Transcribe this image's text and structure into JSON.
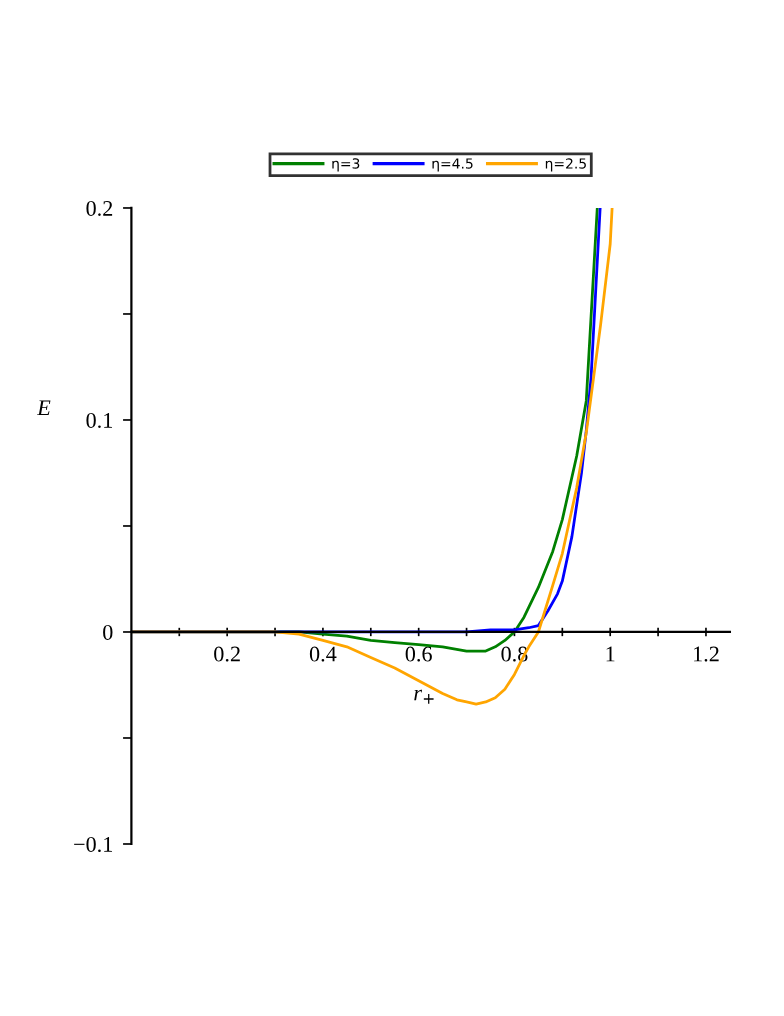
{
  "chart_data": {
    "type": "line",
    "xlabel": "r$_{+}$",
    "ylabel": "E",
    "xlim": [
      0,
      1.25
    ],
    "ylim": [
      -0.1,
      0.2
    ],
    "xticks": [
      {
        "value": 0.1,
        "label": null
      },
      0.2,
      {
        "value": 0.3,
        "label": null
      },
      0.4,
      {
        "value": 0.5,
        "label": null
      },
      0.6,
      {
        "value": 0.7,
        "label": null
      },
      0.8,
      {
        "value": 0.9,
        "label": null
      },
      1,
      {
        "value": 1.1,
        "label": null
      },
      1.2
    ],
    "yticks": [
      {
        "value": -0.1,
        "label": "−0.1"
      },
      {
        "value": -0.05,
        "label": null
      },
      0,
      {
        "value": 0.05,
        "label": null
      },
      0.1,
      {
        "value": 0.15,
        "label": null
      },
      0.2
    ],
    "legend": "top",
    "grid": false,
    "marker": "none",
    "line_style": "solid",
    "series": [
      {
        "name": "η=3",
        "color": "#008000",
        "x": [
          0,
          0.35,
          0.4,
          0.45,
          0.5,
          0.55,
          0.6,
          0.65,
          0.7,
          0.72,
          0.74,
          0.76,
          0.78,
          0.8,
          0.82,
          0.85,
          0.88,
          0.9,
          0.93,
          0.95,
          0.973
        ],
        "values": [
          0,
          0,
          -0.001,
          -0.002,
          -0.004,
          -0.005,
          -0.006,
          -0.007,
          -0.009,
          -0.009,
          -0.009,
          -0.007,
          -0.004,
          0,
          0.007,
          0.021,
          0.038,
          0.053,
          0.083,
          0.109,
          0.2
        ]
      },
      {
        "name": "η=4.5",
        "color": "#0000ff",
        "x": [
          0,
          0.7,
          0.75,
          0.8,
          0.83,
          0.85,
          0.87,
          0.89,
          0.9,
          0.92,
          0.94,
          0.95,
          0.96,
          0.979
        ],
        "values": [
          0,
          0,
          0.001,
          0.001,
          0.002,
          0.003,
          0.01,
          0.018,
          0.024,
          0.045,
          0.075,
          0.095,
          0.12,
          0.2
        ]
      },
      {
        "name": "η=2.5",
        "color": "#ffa500",
        "x": [
          0,
          0.3,
          0.35,
          0.4,
          0.45,
          0.5,
          0.55,
          0.6,
          0.65,
          0.68,
          0.7,
          0.72,
          0.74,
          0.76,
          0.78,
          0.8,
          0.82,
          0.83,
          0.85,
          0.88,
          0.9,
          0.93,
          0.95,
          0.98,
          1.0,
          1.004
        ],
        "values": [
          0,
          0,
          -0.001,
          -0.004,
          -0.007,
          -0.012,
          -0.017,
          -0.023,
          -0.029,
          -0.032,
          -0.033,
          -0.034,
          -0.033,
          -0.031,
          -0.027,
          -0.02,
          -0.011,
          -0.007,
          0,
          0.022,
          0.037,
          0.068,
          0.094,
          0.145,
          0.183,
          0.2
        ]
      }
    ]
  }
}
